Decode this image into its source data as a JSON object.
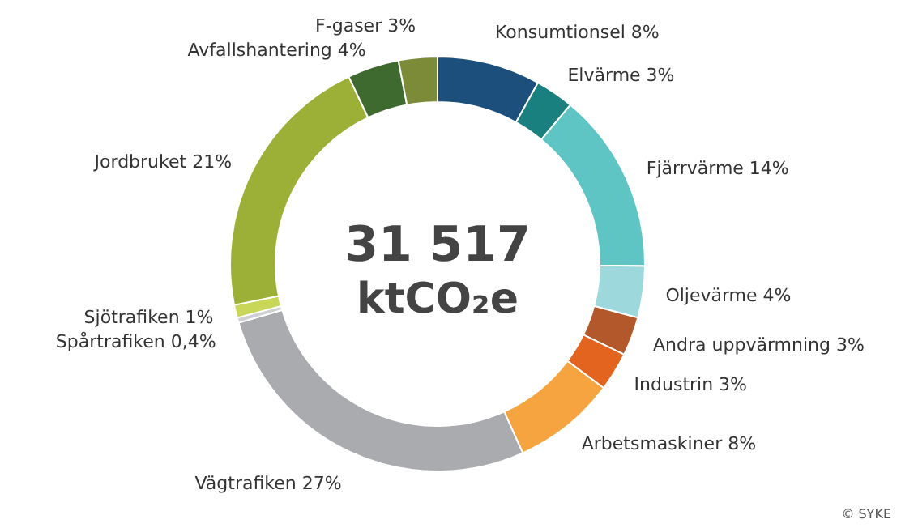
{
  "chart_data": {
    "type": "donut",
    "title": "31 517",
    "subtitle": "ktCO₂e",
    "categories": [
      "Konsumtionsel",
      "Elvärme",
      "Fjärrvärme",
      "Oljevärme",
      "Andra uppvärmning",
      "Industrin",
      "Arbetsmaskiner",
      "Vägtrafiken",
      "Spårtrafiken",
      "Sjötrafiken",
      "Jordbruket",
      "Avfallshantering",
      "F-gaser"
    ],
    "values": [
      8,
      3,
      14,
      4,
      3,
      3,
      8,
      27,
      0.4,
      1,
      21,
      4,
      3
    ],
    "value_labels": [
      "8%",
      "3%",
      "14%",
      "4%",
      "3%",
      "3%",
      "8%",
      "27%",
      "0,4%",
      "1%",
      "21%",
      "4%",
      "3%"
    ],
    "colors": [
      "#1d4f7c",
      "#19807f",
      "#5fc5c4",
      "#9dd9dc",
      "#b3582b",
      "#e2641f",
      "#f6a43f",
      "#a9abae",
      "#cfd0d2",
      "#c8d758",
      "#9cb037",
      "#3e6a30",
      "#7b8b37"
    ],
    "annotations": [
      "© SYKE"
    ]
  }
}
